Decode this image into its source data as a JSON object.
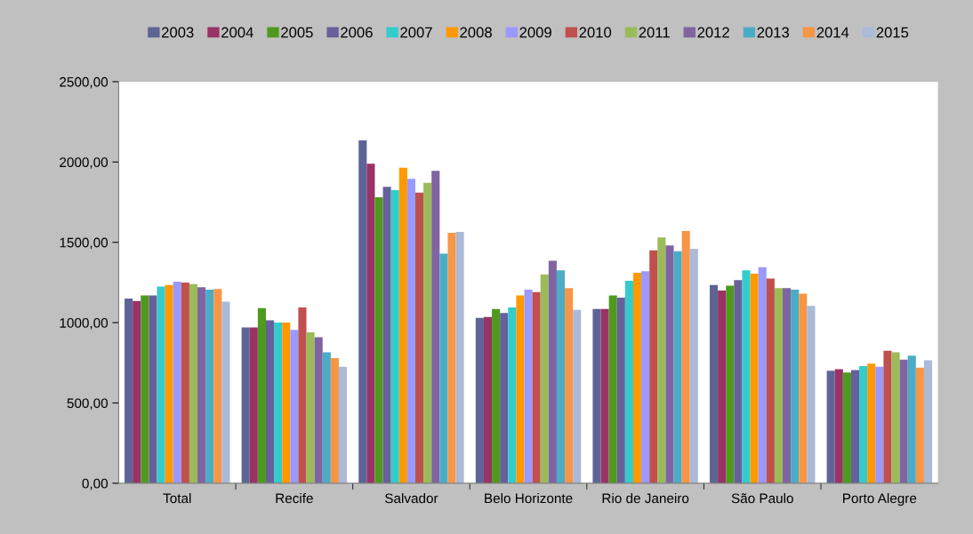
{
  "chart_data": {
    "type": "bar",
    "categories": [
      "Total",
      "Recife",
      "Salvador",
      "Belo Horizonte",
      "Rio de Janeiro",
      "São Paulo",
      "Porto Alegre"
    ],
    "series": [
      {
        "name": "2003",
        "color": "#5f6497",
        "values": [
          1150,
          970,
          2135,
          1030,
          1085,
          1235,
          700
        ]
      },
      {
        "name": "2004",
        "color": "#993366",
        "values": [
          1135,
          970,
          1990,
          1035,
          1085,
          1200,
          710
        ]
      },
      {
        "name": "2005",
        "color": "#4e9a1e",
        "values": [
          1170,
          1090,
          1780,
          1085,
          1170,
          1230,
          690
        ]
      },
      {
        "name": "2006",
        "color": "#67609b",
        "values": [
          1170,
          1015,
          1845,
          1060,
          1155,
          1265,
          705
        ]
      },
      {
        "name": "2007",
        "color": "#33cccc",
        "values": [
          1225,
          1000,
          1825,
          1095,
          1260,
          1325,
          730
        ]
      },
      {
        "name": "2008",
        "color": "#ff9900",
        "values": [
          1235,
          1000,
          1965,
          1170,
          1310,
          1305,
          745
        ]
      },
      {
        "name": "2009",
        "color": "#9999ff",
        "values": [
          1255,
          955,
          1895,
          1205,
          1320,
          1345,
          725
        ]
      },
      {
        "name": "2010",
        "color": "#c0504d",
        "values": [
          1250,
          1095,
          1810,
          1190,
          1450,
          1275,
          825
        ]
      },
      {
        "name": "2011",
        "color": "#9bbb59",
        "values": [
          1240,
          940,
          1870,
          1300,
          1530,
          1215,
          815
        ]
      },
      {
        "name": "2012",
        "color": "#8064a2",
        "values": [
          1220,
          910,
          1945,
          1385,
          1480,
          1215,
          770
        ]
      },
      {
        "name": "2013",
        "color": "#4bacc6",
        "values": [
          1205,
          815,
          1430,
          1325,
          1445,
          1205,
          795
        ]
      },
      {
        "name": "2014",
        "color": "#f79646",
        "values": [
          1210,
          780,
          1560,
          1215,
          1570,
          1180,
          720
        ]
      },
      {
        "name": "2015",
        "color": "#aabad7",
        "values": [
          1130,
          725,
          1565,
          1080,
          1460,
          1105,
          765
        ]
      }
    ],
    "ylim": [
      0,
      2500
    ],
    "yticks": [
      {
        "value": 0,
        "label": "0,00"
      },
      {
        "value": 500,
        "label": "500,00"
      },
      {
        "value": 1000,
        "label": "1000,00"
      },
      {
        "value": 1500,
        "label": "1500,00"
      },
      {
        "value": 2000,
        "label": "2000,00"
      },
      {
        "value": 2500,
        "label": "2500,00"
      }
    ],
    "legend": "top",
    "grid": false
  }
}
